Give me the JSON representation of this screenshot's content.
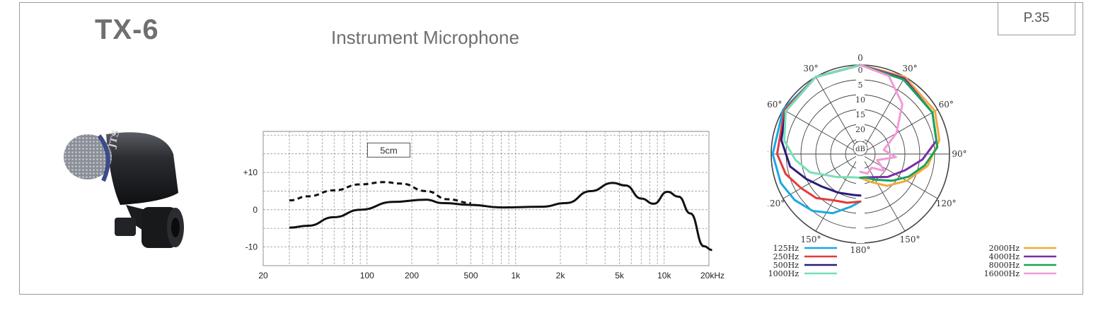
{
  "header": {
    "model": "TX-6",
    "subtitle": "Instrument Microphone",
    "page": "P.35"
  },
  "product": {
    "brand_mark": "JTS"
  },
  "chart_data": [
    {
      "type": "line",
      "x_scale": "log",
      "x_tick_labels": [
        "20",
        "100",
        "200",
        "500",
        "1k",
        "2k",
        "5k",
        "10k",
        "20kHz"
      ],
      "x_tick_values": [
        20,
        100,
        200,
        500,
        1000,
        2000,
        5000,
        10000,
        20000
      ],
      "y_tick_labels": [
        "+10",
        "0",
        "-10"
      ],
      "y_tick_values": [
        10,
        0,
        -10
      ],
      "xlim": [
        20,
        20000
      ],
      "ylim": [
        -15,
        21
      ],
      "grid": true,
      "annotation": "5cm",
      "series": [
        {
          "style": "solid",
          "x": [
            30,
            40,
            60,
            90,
            150,
            250,
            320,
            500,
            800,
            1500,
            2200,
            3200,
            4500,
            5500,
            7000,
            8500,
            10500,
            12500,
            15000,
            18500,
            21000
          ],
          "y": [
            -4.8,
            -4.3,
            -2,
            0,
            2.1,
            2.7,
            1.8,
            1.3,
            0.6,
            0.8,
            1.8,
            5,
            7.2,
            6.5,
            3,
            1.6,
            4.8,
            3.5,
            -1,
            -9.8,
            -10.8
          ]
        },
        {
          "style": "dashed",
          "x": [
            30,
            40,
            60,
            90,
            130,
            170,
            250,
            350,
            500
          ],
          "y": [
            2.5,
            3.6,
            5.2,
            6.8,
            7.4,
            7,
            5,
            2.8,
            1.8
          ]
        }
      ]
    },
    {
      "type": "polar",
      "angle_labels": [
        "0",
        "30°",
        "60°",
        "90°",
        "120°",
        "150°",
        "180°",
        "30°",
        "60°",
        "90°",
        "120°",
        "150°"
      ],
      "ring_labels": [
        "0",
        "5",
        "10",
        "15",
        "20",
        "25"
      ],
      "center_label": "dB",
      "legend_left": [
        {
          "label": "125Hz",
          "color": "#1aa7e6"
        },
        {
          "label": "250Hz",
          "color": "#e23b3b"
        },
        {
          "label": "500Hz",
          "color": "#2d1a78"
        },
        {
          "label": "1000Hz",
          "color": "#77e0b8"
        }
      ],
      "legend_right": [
        {
          "label": "2000Hz",
          "color": "#f2a93b"
        },
        {
          "label": "4000Hz",
          "color": "#7a2ea8"
        },
        {
          "label": "8000Hz",
          "color": "#1aa35a"
        },
        {
          "label": "16000Hz",
          "color": "#f29ad6"
        }
      ],
      "series_left": [
        {
          "name": "125Hz",
          "angle_deg": [
            0,
            30,
            60,
            90,
            110,
            125,
            140,
            155,
            170,
            180
          ],
          "db": [
            0,
            0,
            0,
            0.5,
            1.5,
            3,
            5,
            8,
            12,
            14
          ]
        },
        {
          "name": "250Hz",
          "angle_deg": [
            0,
            30,
            60,
            90,
            105,
            120,
            135,
            150,
            165,
            180
          ],
          "db": [
            0,
            0,
            0.5,
            2,
            4,
            7,
            9,
            12,
            13,
            14
          ]
        },
        {
          "name": "500Hz",
          "angle_deg": [
            0,
            30,
            60,
            80,
            100,
            115,
            130,
            150,
            170,
            180
          ],
          "db": [
            0,
            0,
            1,
            3,
            6,
            10,
            13,
            15,
            16,
            16
          ]
        },
        {
          "name": "1000Hz",
          "angle_deg": [
            0,
            30,
            60,
            80,
            95,
            110,
            120,
            135,
            150,
            170,
            180
          ],
          "db": [
            0,
            0,
            1,
            4,
            8,
            12,
            16,
            19,
            21,
            22,
            22
          ]
        }
      ],
      "series_right": [
        {
          "name": "2000Hz",
          "angle_deg": [
            0,
            30,
            60,
            80,
            100,
            120,
            140,
            160,
            180
          ],
          "db": [
            0,
            0,
            1,
            3,
            7,
            12,
            16,
            20,
            22
          ]
        },
        {
          "name": "4000Hz",
          "angle_deg": [
            0,
            30,
            60,
            80,
            95,
            110,
            130,
            150,
            170,
            180
          ],
          "db": [
            0,
            0.5,
            2,
            4,
            9,
            14,
            18,
            21,
            22,
            22
          ]
        },
        {
          "name": "8000Hz",
          "angle_deg": [
            0,
            30,
            60,
            85,
            100,
            115,
            130,
            150,
            170,
            180
          ],
          "db": [
            0,
            1,
            2,
            4,
            8,
            12,
            16,
            20,
            22,
            22
          ]
        },
        {
          "name": "16000Hz",
          "angle_deg": [
            0,
            20,
            40,
            60,
            80,
            95,
            110,
            125,
            140,
            160,
            180
          ],
          "db": [
            0,
            2,
            8,
            16,
            22,
            18,
            24,
            20,
            24,
            23,
            24
          ]
        }
      ]
    }
  ]
}
